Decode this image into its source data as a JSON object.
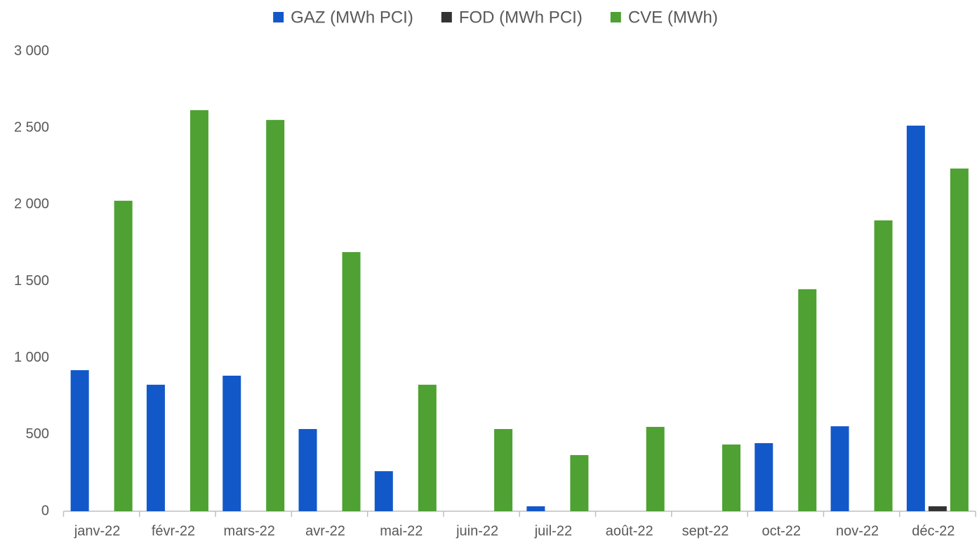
{
  "chart_data": {
    "type": "bar",
    "categories": [
      "janv-22",
      "févr-22",
      "mars-22",
      "avr-22",
      "mai-22",
      "juin-22",
      "juil-22",
      "août-22",
      "sept-22",
      "oct-22",
      "nov-22",
      "déc-22"
    ],
    "series": [
      {
        "name": "GAZ (MWh PCI)",
        "color": "#1358c9",
        "values": [
          920,
          825,
          884,
          536,
          261,
          0,
          32,
          0,
          0,
          444,
          554,
          2515
        ]
      },
      {
        "name": "FOD (MWh PCI)",
        "color": "#333333",
        "values": [
          0,
          0,
          0,
          0,
          0,
          0,
          0,
          0,
          0,
          0,
          0,
          32
        ]
      },
      {
        "name": "CVE (MWh)",
        "color": "#4ea132",
        "values": [
          2025,
          2616,
          2552,
          1690,
          825,
          536,
          366,
          550,
          435,
          1448,
          1897,
          2235
        ]
      }
    ],
    "ylim": [
      0,
      3000
    ],
    "yticks": [
      0,
      500,
      {
        "value": 1000,
        "label": "1 000"
      },
      {
        "value": 1500,
        "label": "1 500"
      },
      {
        "value": 2000,
        "label": "2 000"
      },
      {
        "value": 2500,
        "label": "2 500"
      },
      {
        "value": 3000,
        "label": "3 000"
      }
    ],
    "grid": false,
    "legend": "top"
  }
}
